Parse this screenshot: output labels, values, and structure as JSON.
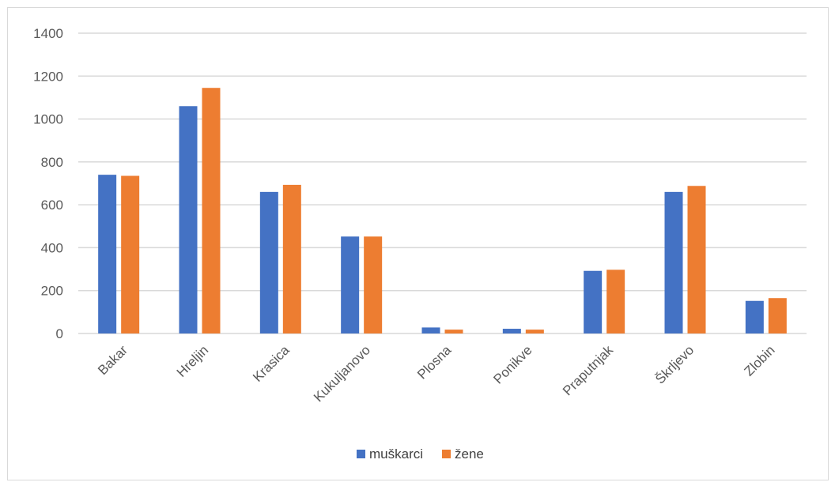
{
  "chart_data": {
    "type": "bar",
    "title": "",
    "xlabel": "",
    "ylabel": "",
    "categories": [
      "Bakar",
      "Hreljin",
      "Krasica",
      "Kukuljanovo",
      "Plosna",
      "Ponikve",
      "Praputnjak",
      "Škrljevo",
      "Zlobin"
    ],
    "series": [
      {
        "name": "muškarci",
        "color": "#4472C4",
        "values": [
          740,
          1060,
          660,
          452,
          28,
          22,
          292,
          660,
          152
        ]
      },
      {
        "name": "žene",
        "color": "#ED7D31",
        "values": [
          735,
          1145,
          693,
          452,
          18,
          18,
          297,
          688,
          165
        ]
      }
    ],
    "ylim": [
      0,
      1400
    ],
    "yticks": [
      0,
      200,
      400,
      600,
      800,
      1000,
      1200,
      1400
    ],
    "grid": true,
    "legend_position": "bottom",
    "gridline_color": "#d9d9d9"
  }
}
